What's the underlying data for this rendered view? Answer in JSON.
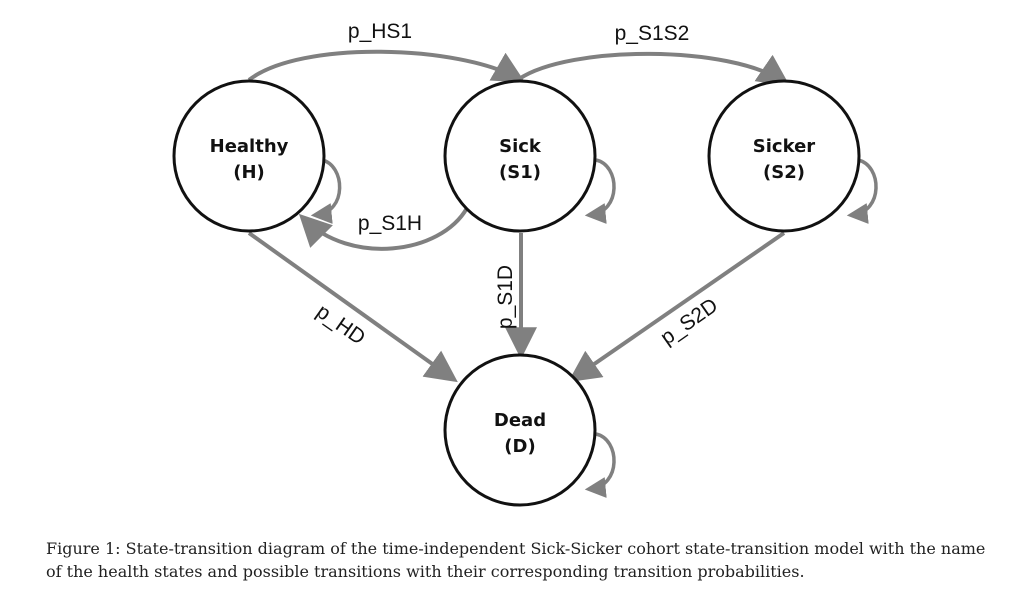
{
  "diagram": {
    "states": [
      {
        "id": "H",
        "name": "Healthy",
        "abbr": "(H)"
      },
      {
        "id": "S1",
        "name": "Sick",
        "abbr": "(S1)"
      },
      {
        "id": "S2",
        "name": "Sicker",
        "abbr": "(S2)"
      },
      {
        "id": "D",
        "name": "Dead",
        "abbr": "(D)"
      }
    ],
    "transitions": [
      {
        "from": "H",
        "to": "S1",
        "label": "p_HS1"
      },
      {
        "from": "S1",
        "to": "S2",
        "label": "p_S1S2"
      },
      {
        "from": "S1",
        "to": "H",
        "label": "p_S1H"
      },
      {
        "from": "S1",
        "to": "D",
        "label": "p_S1D"
      },
      {
        "from": "H",
        "to": "D",
        "label": "p_HD"
      },
      {
        "from": "S2",
        "to": "D",
        "label": "p_S2D"
      },
      {
        "from": "H",
        "to": "H",
        "label": ""
      },
      {
        "from": "S1",
        "to": "S1",
        "label": ""
      },
      {
        "from": "S2",
        "to": "S2",
        "label": ""
      },
      {
        "from": "D",
        "to": "D",
        "label": ""
      }
    ],
    "edge_color": "#808080",
    "node_stroke": "#111111"
  },
  "caption": "Figure 1: State-transition diagram of the time-independent Sick-Sicker cohort state-transition model with the name of the health states and possible transitions with their corresponding transition probabilities."
}
